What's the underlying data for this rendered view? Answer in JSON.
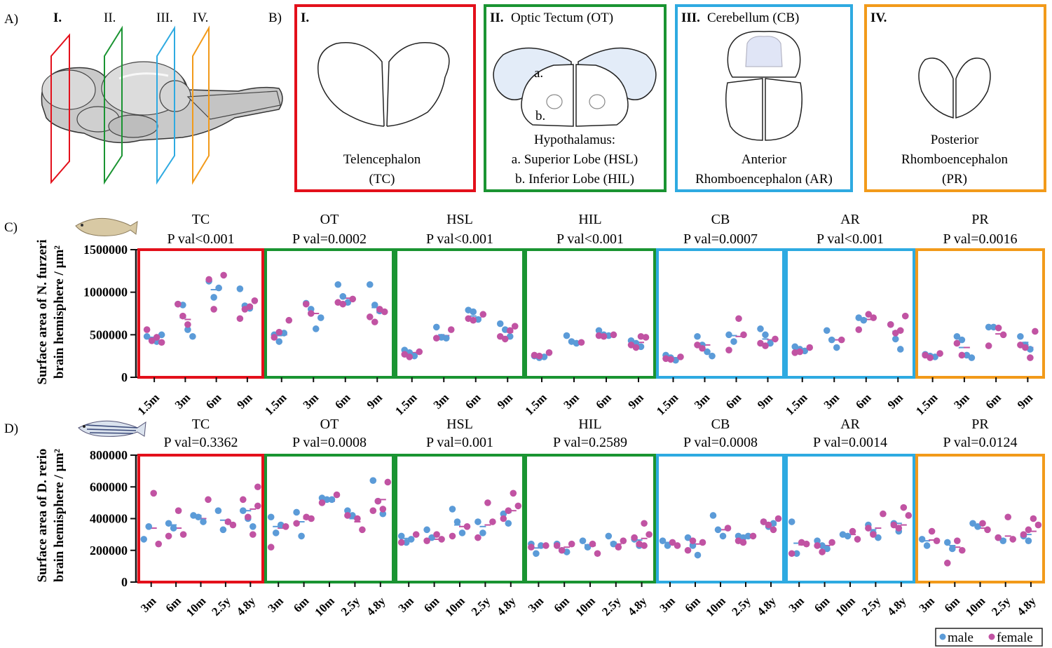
{
  "panel_labels": {
    "a": "A)",
    "b": "B)",
    "c": "C)",
    "d": "D)"
  },
  "section_markers": [
    "I.",
    "II.",
    "III.",
    "IV."
  ],
  "schematics": [
    {
      "numeral": "I.",
      "title": "",
      "lines": [
        "Telencephalon",
        "(TC)"
      ],
      "color": "#e3101b"
    },
    {
      "numeral": "II.",
      "title": "Optic Tectum (OT)",
      "lines": [
        "Hypothalamus:",
        "a. Superior Lobe (HSL)",
        "b. Inferior Lobe (HIL)"
      ],
      "marks": [
        "a.",
        "b."
      ],
      "color": "#1a9432"
    },
    {
      "numeral": "III.",
      "title": "Cerebellum (CB)",
      "lines": [
        "Anterior",
        "Rhomboencephalon (AR)"
      ],
      "color": "#2eaae1"
    },
    {
      "numeral": "IV.",
      "title": "",
      "lines": [
        "Posterior",
        "Rhomboencephalon",
        "(PR)"
      ],
      "color": "#f29a1a"
    }
  ],
  "legend": {
    "male": "male",
    "female": "female",
    "male_color": "#5b9bd8",
    "female_color": "#c153a3"
  },
  "chart_data": [
    {
      "type": "scatter",
      "species": "N. furzeri",
      "ylabel_line1": "Surface area of N. furzeri",
      "ylabel_line2": "brain hemisphere / µm²",
      "ylim": [
        0,
        1500000
      ],
      "yticks": [
        "0",
        "500000",
        "1000000",
        "1500000"
      ],
      "categories": [
        "1.5m",
        "3m",
        "6m",
        "9m"
      ],
      "regions": [
        {
          "name": "TC",
          "pval": "P val<0.001",
          "border": "#e3101b",
          "male": [
            [
              480000,
              440000,
              420000,
              500000
            ],
            [
              860000,
              850000,
              560000,
              480000
            ],
            [
              1130000,
              940000,
              1050000
            ],
            [
              1040000,
              840000,
              810000
            ]
          ],
          "female": [
            [
              560000,
              430000,
              470000,
              410000
            ],
            [
              860000,
              720000,
              620000
            ],
            [
              1200000,
              1150000,
              800000
            ],
            [
              900000,
              690000,
              800000,
              830000
            ]
          ],
          "mean_male": [
            470000,
            700000,
            1030000,
            850000
          ],
          "mean_female": [
            460000,
            680000,
            1040000,
            840000
          ]
        },
        {
          "name": "OT",
          "pval": "P val=0.0002",
          "border": "#1a9432",
          "male": [
            [
              500000,
              420000,
              520000
            ],
            [
              870000,
              800000,
              570000,
              700000
            ],
            [
              1090000,
              950000,
              880000
            ],
            [
              1090000,
              850000,
              780000
            ]
          ],
          "female": [
            [
              670000,
              470000,
              530000
            ],
            [
              860000,
              750000
            ],
            [
              920000,
              880000,
              860000
            ],
            [
              770000,
              710000,
              650000,
              800000
            ]
          ],
          "mean_male": [
            490000,
            760000,
            960000,
            820000
          ],
          "mean_female": [
            500000,
            750000,
            930000,
            760000
          ]
        },
        {
          "name": "HSL",
          "pval": "P val<0.001",
          "border": "#1a9432",
          "male": [
            [
              320000,
              290000,
              250000
            ],
            [
              590000,
              470000,
              460000
            ],
            [
              790000,
              770000,
              680000
            ],
            [
              630000,
              560000,
              480000
            ]
          ],
          "female": [
            [
              300000,
              270000,
              240000
            ],
            [
              560000,
              460000
            ],
            [
              740000,
              690000,
              670000
            ],
            [
              600000,
              480000,
              450000,
              550000
            ]
          ],
          "mean_male": [
            300000,
            500000,
            720000,
            560000
          ],
          "mean_female": [
            290000,
            490000,
            700000,
            530000
          ]
        },
        {
          "name": "HIL",
          "pval": "P val<0.001",
          "border": "#1a9432",
          "male": [
            [
              250000,
              230000,
              240000
            ],
            [
              490000,
              420000,
              400000
            ],
            [
              550000,
              500000,
              490000
            ],
            [
              430000,
              400000,
              360000
            ]
          ],
          "female": [
            [
              290000,
              260000,
              250000
            ],
            [
              410000
            ],
            [
              500000,
              490000,
              480000
            ],
            [
              470000,
              380000,
              350000,
              480000
            ]
          ],
          "mean_male": [
            250000,
            430000,
            510000,
            400000
          ],
          "mean_female": [
            260000,
            420000,
            490000,
            410000
          ]
        },
        {
          "name": "CB",
          "pval": "P val=0.0007",
          "border": "#2eaae1",
          "male": [
            [
              260000,
              230000,
              200000
            ],
            [
              480000,
              380000,
              300000,
              250000
            ],
            [
              500000,
              420000
            ],
            [
              570000,
              500000,
              400000
            ]
          ],
          "female": [
            [
              240000,
              220000,
              210000
            ],
            [
              380000,
              340000
            ],
            [
              690000,
              500000,
              320000
            ],
            [
              450000,
              400000,
              370000
            ]
          ],
          "mean_male": [
            235000,
            390000,
            490000,
            450000
          ],
          "mean_female": [
            230000,
            380000,
            480000,
            440000
          ]
        },
        {
          "name": "AR",
          "pval": "P val<0.001",
          "border": "#2eaae1",
          "male": [
            [
              360000,
              330000,
              310000
            ],
            [
              550000,
              440000,
              350000
            ],
            [
              700000,
              670000
            ],
            [
              620000,
              450000,
              330000
            ]
          ],
          "female": [
            [
              350000,
              290000,
              300000
            ],
            [
              440000
            ],
            [
              740000,
              700000,
              560000
            ],
            [
              720000,
              620000,
              520000,
              550000
            ]
          ],
          "mean_male": [
            330000,
            450000,
            690000,
            540000
          ],
          "mean_female": [
            320000,
            440000,
            680000,
            560000
          ]
        },
        {
          "name": "PR",
          "pval": "P val=0.0016",
          "border": "#f29a1a",
          "male": [
            [
              270000,
              250000,
              240000
            ],
            [
              480000,
              440000,
              260000,
              230000
            ],
            [
              590000,
              590000
            ],
            [
              480000,
              380000,
              330000
            ]
          ],
          "female": [
            [
              280000,
              260000,
              230000
            ],
            [
              400000,
              260000
            ],
            [
              580000,
              500000,
              370000
            ],
            [
              540000,
              380000,
              350000,
              230000
            ]
          ],
          "mean_male": [
            260000,
            350000,
            580000,
            410000
          ],
          "mean_female": [
            250000,
            350000,
            510000,
            350000
          ]
        }
      ]
    },
    {
      "type": "scatter",
      "species": "D. rerio",
      "ylabel_line1": "Surface area of D. rerio",
      "ylabel_line2": "brain hemisphere / µm²",
      "ylim": [
        0,
        800000
      ],
      "yticks": [
        "0",
        "200000",
        "400000",
        "600000",
        "800000"
      ],
      "categories": [
        "3m",
        "6m",
        "10m",
        "2.5y",
        "4.8y"
      ],
      "regions": [
        {
          "name": "TC",
          "pval": "P val=0.3362",
          "border": "#e3101b",
          "male": [
            [
              270000,
              350000
            ],
            [
              370000,
              340000
            ],
            [
              420000,
              410000,
              380000
            ],
            [
              450000,
              330000
            ],
            [
              450000,
              400000,
              350000
            ]
          ],
          "female": [
            [
              560000,
              240000
            ],
            [
              450000,
              300000,
              290000
            ],
            [
              520000
            ],
            [
              380000,
              360000
            ],
            [
              600000,
              520000,
              410000,
              300000,
              480000
            ]
          ],
          "mean_male": [
            350000,
            360000,
            420000,
            390000,
            450000
          ],
          "mean_female": [
            340000,
            340000,
            400000,
            370000,
            460000
          ]
        },
        {
          "name": "OT",
          "pval": "P val=0.0008",
          "border": "#1a9432",
          "male": [
            [
              410000,
              310000,
              360000
            ],
            [
              440000,
              290000
            ],
            [
              530000,
              520000,
              520000
            ],
            [
              450000,
              420000
            ],
            [
              640000,
              510000,
              430000
            ]
          ],
          "female": [
            [
              350000,
              220000
            ],
            [
              410000,
              400000,
              370000
            ],
            [
              550000,
              500000
            ],
            [
              400000,
              330000,
              420000
            ],
            [
              630000,
              450000,
              510000,
              460000
            ]
          ],
          "mean_male": [
            350000,
            380000,
            520000,
            400000,
            510000
          ],
          "mean_female": [
            340000,
            400000,
            510000,
            380000,
            520000
          ]
        },
        {
          "name": "HSL",
          "pval": "P val=0.001",
          "border": "#1a9432",
          "male": [
            [
              290000,
              250000,
              270000
            ],
            [
              330000,
              280000
            ],
            [
              460000,
              380000,
              310000
            ],
            [
              380000,
              310000
            ],
            [
              430000,
              370000
            ]
          ],
          "female": [
            [
              300000,
              250000
            ],
            [
              300000,
              270000,
              260000
            ],
            [
              350000,
              290000
            ],
            [
              500000,
              380000,
              280000
            ],
            [
              560000,
              480000,
              400000,
              450000
            ]
          ],
          "mean_male": [
            275000,
            280000,
            360000,
            350000,
            440000
          ],
          "mean_female": [
            270000,
            270000,
            350000,
            360000,
            450000
          ]
        },
        {
          "name": "HIL",
          "pval": "P val=0.2589",
          "border": "#1a9432",
          "male": [
            [
              240000,
              180000,
              230000
            ],
            [
              240000,
              200000,
              190000
            ],
            [
              260000,
              220000
            ],
            [
              290000,
              240000
            ],
            [
              270000,
              230000
            ]
          ],
          "female": [
            [
              230000,
              220000
            ],
            [
              240000,
              230000,
              200000
            ],
            [
              240000,
              180000
            ],
            [
              220000,
              260000
            ],
            [
              370000,
              300000,
              280000,
              240000,
              230000
            ]
          ],
          "mean_male": [
            215000,
            210000,
            235000,
            250000,
            265000
          ],
          "mean_female": [
            220000,
            220000,
            230000,
            240000,
            275000
          ]
        },
        {
          "name": "CB",
          "pval": "P val=0.0008",
          "border": "#2eaae1",
          "male": [
            [
              260000,
              230000
            ],
            [
              280000,
              230000,
              170000
            ],
            [
              420000,
              330000,
              290000
            ],
            [
              290000,
              280000,
              290000
            ],
            [
              380000,
              350000,
              370000
            ]
          ],
          "female": [
            [
              250000,
              230000
            ],
            [
              250000,
              200000,
              260000
            ],
            [
              340000
            ],
            [
              290000,
              260000,
              250000
            ],
            [
              400000,
              380000,
              360000,
              330000
            ]
          ],
          "mean_male": [
            250000,
            240000,
            330000,
            290000,
            360000
          ],
          "mean_female": [
            240000,
            240000,
            330000,
            280000,
            360000
          ]
        },
        {
          "name": "AR",
          "pval": "P val=0.0014",
          "border": "#2eaae1",
          "male": [
            [
              380000,
              180000
            ],
            [
              260000,
              230000,
              210000
            ],
            [
              300000,
              290000
            ],
            [
              360000,
              310000,
              280000
            ],
            [
              370000,
              320000
            ]
          ],
          "female": [
            [
              250000,
              240000,
              180000
            ],
            [
              250000,
              230000,
              190000
            ],
            [
              320000,
              270000
            ],
            [
              430000,
              340000,
              300000
            ],
            [
              470000,
              420000,
              360000,
              340000
            ]
          ],
          "mean_male": [
            245000,
            230000,
            300000,
            330000,
            370000
          ],
          "mean_female": [
            235000,
            230000,
            300000,
            340000,
            360000
          ]
        },
        {
          "name": "PR",
          "pval": "P val=0.0124",
          "border": "#f29a1a",
          "male": [
            [
              270000,
              230000
            ],
            [
              250000,
              210000
            ],
            [
              370000,
              350000
            ],
            [
              280000,
              260000
            ],
            [
              290000,
              260000
            ]
          ],
          "female": [
            [
              320000,
              260000
            ],
            [
              260000,
              200000,
              120000
            ],
            [
              370000,
              330000
            ],
            [
              410000,
              270000,
              280000
            ],
            [
              400000,
              360000,
              300000,
              330000
            ]
          ],
          "mean_male": [
            260000,
            230000,
            350000,
            270000,
            300000
          ],
          "mean_female": [
            265000,
            220000,
            340000,
            290000,
            320000
          ]
        }
      ]
    }
  ]
}
